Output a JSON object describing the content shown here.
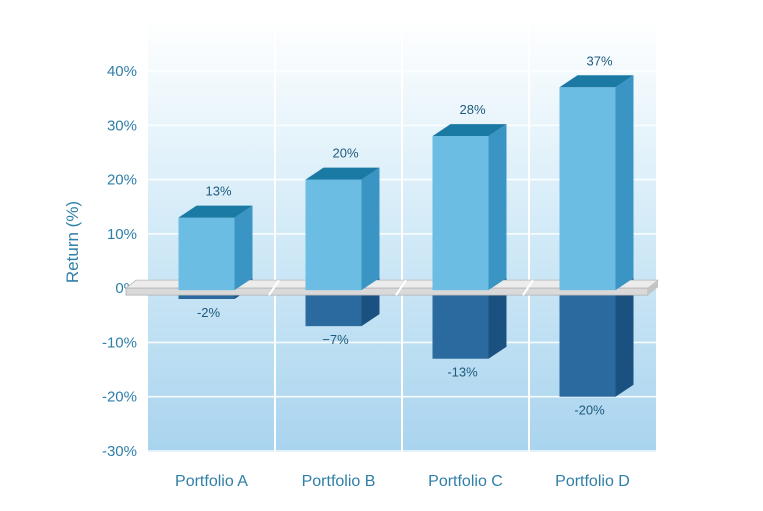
{
  "chart_data": {
    "type": "bar",
    "categories": [
      "Portfolio A",
      "Portfolio B",
      "Portfolio C",
      "Portfolio D"
    ],
    "series": [
      {
        "values": [
          13,
          20,
          28,
          37
        ],
        "labels": [
          "13%",
          "20%",
          "28%",
          "37%"
        ]
      },
      {
        "values": [
          -2,
          -7,
          -13,
          -20
        ],
        "labels": [
          "-2%",
          "−7%",
          "-13%",
          "-20%"
        ]
      }
    ],
    "title": "",
    "xlabel": "",
    "ylabel": "Return (%)",
    "ylim": [
      -30,
      40
    ],
    "yticks": [
      40,
      30,
      20,
      10,
      0,
      -10,
      -20,
      -30
    ],
    "ytick_labels": [
      "40%",
      "30%",
      "20%",
      "10%",
      "0%",
      "-10%",
      "-20%",
      "-30%"
    ],
    "grid": true,
    "colors": {
      "positive_front": "#6bbde3",
      "positive_side": "#3b95c4",
      "positive_top": "#1b7aa3",
      "negative_front": "#2a6a9e",
      "negative_side": "#1a5181",
      "baseline_plate": "#d9d9d9",
      "plot_bg_top": "#ffffff",
      "plot_bg_bottom": "#a9d4ee",
      "text": "#2f7fa8"
    }
  }
}
